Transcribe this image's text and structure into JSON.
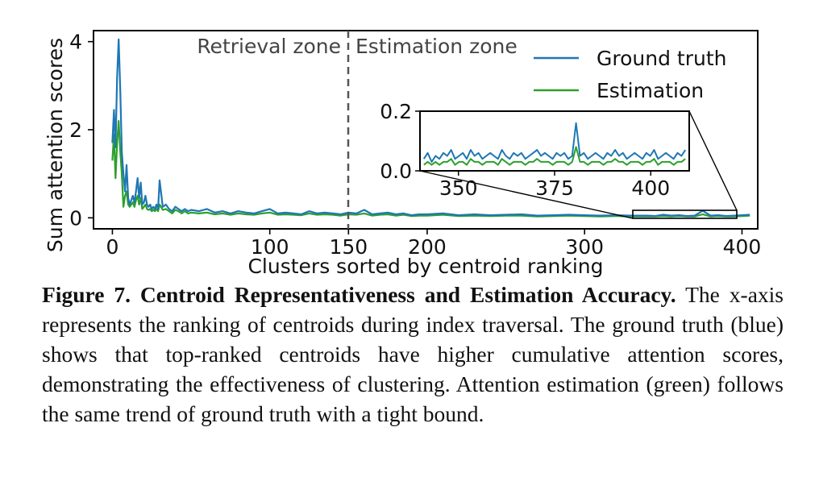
{
  "chart_data": {
    "type": "line",
    "xlabel": "Clusters sorted by centroid ranking",
    "ylabel": "Sum attention scores",
    "xlim": [
      -12,
      410
    ],
    "ylim": [
      -0.25,
      4.25
    ],
    "xticks": [
      0,
      100,
      150,
      200,
      300,
      400
    ],
    "yticks": [
      0,
      2,
      4
    ],
    "grid": false,
    "legend": "top-right",
    "zone_boundary_x": 150,
    "zone_labels": [
      "Retrieval zone",
      "Estimation zone"
    ],
    "series": [
      {
        "name": "Ground truth",
        "color": "#1f77b4",
        "x": [
          0,
          1,
          2,
          3,
          4,
          5,
          6,
          7,
          8,
          9,
          10,
          11,
          12,
          13,
          14,
          15,
          16,
          17,
          18,
          19,
          20,
          21,
          22,
          23,
          24,
          25,
          26,
          27,
          28,
          29,
          30,
          32,
          34,
          36,
          38,
          40,
          42,
          44,
          46,
          48,
          50,
          55,
          60,
          65,
          70,
          75,
          80,
          85,
          90,
          95,
          100,
          105,
          110,
          115,
          120,
          125,
          130,
          135,
          140,
          145,
          150,
          155,
          160,
          165,
          170,
          175,
          180,
          185,
          190,
          195,
          200,
          210,
          220,
          230,
          240,
          250,
          260,
          270,
          280,
          290,
          300,
          310,
          320,
          330,
          340,
          345,
          350,
          355,
          360,
          365,
          370,
          375,
          380,
          385,
          390,
          395,
          400,
          405
        ],
        "y": [
          1.7,
          2.45,
          1.6,
          3.2,
          4.05,
          2.9,
          1.5,
          1.0,
          0.6,
          1.2,
          0.45,
          0.3,
          0.4,
          0.5,
          0.35,
          0.6,
          0.9,
          0.45,
          0.8,
          0.3,
          0.35,
          0.5,
          0.3,
          0.25,
          0.3,
          0.2,
          0.25,
          0.2,
          0.3,
          0.2,
          0.85,
          0.25,
          0.3,
          0.2,
          0.15,
          0.25,
          0.2,
          0.15,
          0.2,
          0.15,
          0.18,
          0.15,
          0.2,
          0.12,
          0.15,
          0.1,
          0.15,
          0.12,
          0.1,
          0.15,
          0.2,
          0.1,
          0.12,
          0.1,
          0.08,
          0.15,
          0.1,
          0.12,
          0.1,
          0.08,
          0.12,
          0.1,
          0.18,
          0.08,
          0.1,
          0.12,
          0.08,
          0.1,
          0.06,
          0.08,
          0.08,
          0.1,
          0.06,
          0.08,
          0.06,
          0.07,
          0.08,
          0.05,
          0.06,
          0.07,
          0.06,
          0.05,
          0.06,
          0.05,
          0.05,
          0.04,
          0.07,
          0.05,
          0.06,
          0.04,
          0.05,
          0.16,
          0.05,
          0.06,
          0.04,
          0.05,
          0.06,
          0.07
        ]
      },
      {
        "name": "Estimation",
        "color": "#2ca02c",
        "x": [
          0,
          1,
          2,
          3,
          4,
          5,
          6,
          7,
          8,
          9,
          10,
          11,
          12,
          13,
          14,
          15,
          16,
          17,
          18,
          19,
          20,
          21,
          22,
          23,
          24,
          25,
          26,
          27,
          28,
          29,
          30,
          32,
          34,
          36,
          38,
          40,
          42,
          44,
          46,
          48,
          50,
          55,
          60,
          65,
          70,
          75,
          80,
          85,
          90,
          95,
          100,
          105,
          110,
          115,
          120,
          125,
          130,
          135,
          140,
          145,
          150,
          155,
          160,
          165,
          170,
          175,
          180,
          185,
          190,
          195,
          200,
          210,
          220,
          230,
          240,
          250,
          260,
          270,
          280,
          290,
          300,
          310,
          320,
          330,
          340,
          345,
          350,
          355,
          360,
          365,
          370,
          375,
          380,
          385,
          390,
          395,
          400,
          405
        ],
        "y": [
          1.3,
          1.9,
          0.9,
          1.7,
          2.2,
          1.5,
          1.0,
          0.25,
          0.5,
          0.6,
          0.3,
          0.25,
          0.3,
          0.35,
          0.25,
          0.4,
          0.5,
          0.3,
          0.45,
          0.2,
          0.25,
          0.3,
          0.2,
          0.18,
          0.2,
          0.15,
          0.18,
          0.15,
          0.2,
          0.15,
          0.3,
          0.18,
          0.2,
          0.15,
          0.1,
          0.18,
          0.15,
          0.1,
          0.15,
          0.1,
          0.12,
          0.1,
          0.12,
          0.08,
          0.1,
          0.07,
          0.1,
          0.08,
          0.07,
          0.1,
          0.12,
          0.07,
          0.08,
          0.07,
          0.06,
          0.1,
          0.07,
          0.08,
          0.07,
          0.05,
          0.08,
          0.07,
          0.1,
          0.05,
          0.07,
          0.08,
          0.05,
          0.07,
          0.04,
          0.05,
          0.05,
          0.07,
          0.04,
          0.05,
          0.04,
          0.05,
          0.05,
          0.03,
          0.04,
          0.05,
          0.04,
          0.03,
          0.04,
          0.03,
          0.03,
          0.03,
          0.04,
          0.03,
          0.04,
          0.03,
          0.03,
          0.08,
          0.03,
          0.04,
          0.03,
          0.03,
          0.04,
          0.05
        ]
      }
    ],
    "inset": {
      "xlim": [
        340,
        410
      ],
      "ylim": [
        0.0,
        0.2
      ],
      "xticks": [
        350,
        375,
        400
      ],
      "yticks": [
        "0.0",
        "0.2"
      ],
      "ground_truth": [
        0.04,
        0.06,
        0.03,
        0.05,
        0.04,
        0.06,
        0.05,
        0.07,
        0.04,
        0.05,
        0.06,
        0.04,
        0.07,
        0.05,
        0.06,
        0.04,
        0.05,
        0.06,
        0.05,
        0.04,
        0.07,
        0.05,
        0.04,
        0.06,
        0.05,
        0.06,
        0.04,
        0.05,
        0.06,
        0.07,
        0.05,
        0.06,
        0.05,
        0.04,
        0.06,
        0.05,
        0.06,
        0.04,
        0.05,
        0.16,
        0.05,
        0.06,
        0.04,
        0.05,
        0.06,
        0.05,
        0.04,
        0.06,
        0.05,
        0.07,
        0.05,
        0.06,
        0.04,
        0.05,
        0.06,
        0.05,
        0.04,
        0.06,
        0.05,
        0.07,
        0.04,
        0.05,
        0.06,
        0.05,
        0.04,
        0.06,
        0.05,
        0.07
      ],
      "estimation": [
        0.02,
        0.03,
        0.02,
        0.03,
        0.02,
        0.03,
        0.03,
        0.04,
        0.02,
        0.03,
        0.03,
        0.02,
        0.04,
        0.03,
        0.03,
        0.02,
        0.03,
        0.03,
        0.03,
        0.02,
        0.04,
        0.03,
        0.02,
        0.03,
        0.03,
        0.03,
        0.02,
        0.03,
        0.03,
        0.04,
        0.03,
        0.03,
        0.03,
        0.02,
        0.03,
        0.03,
        0.03,
        0.02,
        0.03,
        0.08,
        0.03,
        0.03,
        0.02,
        0.03,
        0.03,
        0.03,
        0.02,
        0.03,
        0.03,
        0.04,
        0.03,
        0.03,
        0.02,
        0.03,
        0.03,
        0.03,
        0.02,
        0.03,
        0.03,
        0.04,
        0.02,
        0.03,
        0.03,
        0.03,
        0.02,
        0.03,
        0.03,
        0.04
      ]
    }
  },
  "caption": {
    "head": "Figure 7. Centroid Representativeness and Estimation Accuracy.",
    "body": " The x-axis represents the ranking of centroids during index traversal. The ground truth (blue) shows that top-ranked centroids have higher cumulative attention scores, demonstrating the effectiveness of clustering. Attention estimation (green) follows the same trend of ground truth with a tight bound."
  }
}
